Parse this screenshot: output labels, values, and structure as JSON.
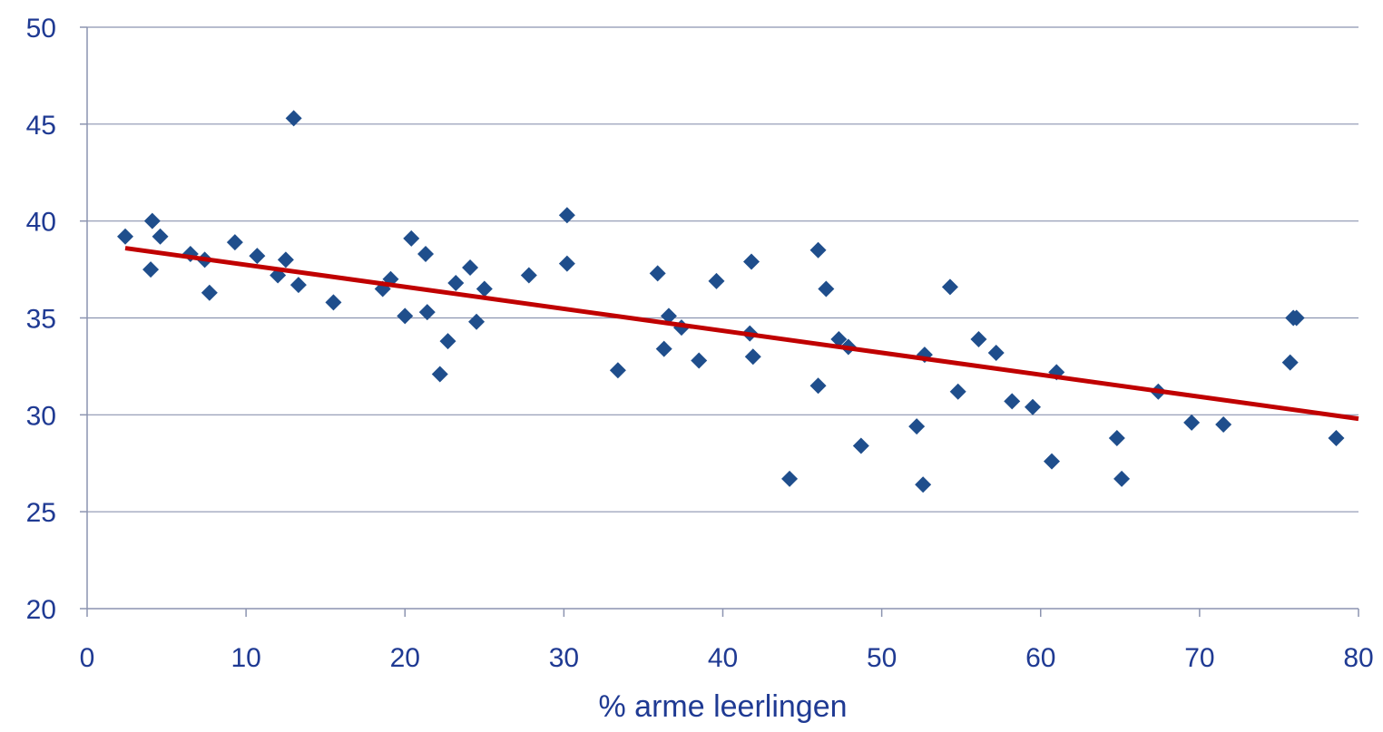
{
  "chart_data": {
    "type": "scatter",
    "title": "",
    "xlabel": "% arme leerlingen",
    "ylabel": "",
    "xlim": [
      0,
      80
    ],
    "ylim": [
      20,
      50
    ],
    "xticks": [
      0,
      10,
      20,
      30,
      40,
      50,
      60,
      70,
      80
    ],
    "yticks": [
      20,
      25,
      30,
      35,
      40,
      45,
      50
    ],
    "grid": "horizontal",
    "legend": "none",
    "colors": {
      "points": "#1f4e8c",
      "trendline": "#c00000",
      "text": "#1f3a93"
    },
    "series": [
      {
        "marker": "diamond",
        "points": [
          [
            2.4,
            39.2
          ],
          [
            4.1,
            40.0
          ],
          [
            4.0,
            37.5
          ],
          [
            4.6,
            39.2
          ],
          [
            6.5,
            38.3
          ],
          [
            7.4,
            38.0
          ],
          [
            7.7,
            36.3
          ],
          [
            9.3,
            38.9
          ],
          [
            10.7,
            38.2
          ],
          [
            12.0,
            37.2
          ],
          [
            12.5,
            38.0
          ],
          [
            13.0,
            45.3
          ],
          [
            13.3,
            36.7
          ],
          [
            15.5,
            35.8
          ],
          [
            18.6,
            36.5
          ],
          [
            19.1,
            37.0
          ],
          [
            20.0,
            35.1
          ],
          [
            20.4,
            39.1
          ],
          [
            21.3,
            38.3
          ],
          [
            21.4,
            35.3
          ],
          [
            22.2,
            32.1
          ],
          [
            22.7,
            33.8
          ],
          [
            23.2,
            36.8
          ],
          [
            24.1,
            37.6
          ],
          [
            24.5,
            34.8
          ],
          [
            25.0,
            36.5
          ],
          [
            27.8,
            37.2
          ],
          [
            30.2,
            40.3
          ],
          [
            30.2,
            37.8
          ],
          [
            33.4,
            32.3
          ],
          [
            35.9,
            37.3
          ],
          [
            36.3,
            33.4
          ],
          [
            36.6,
            35.1
          ],
          [
            37.4,
            34.5
          ],
          [
            38.5,
            32.8
          ],
          [
            39.6,
            36.9
          ],
          [
            41.7,
            34.2
          ],
          [
            41.8,
            37.9
          ],
          [
            41.9,
            33.0
          ],
          [
            44.2,
            26.7
          ],
          [
            46.0,
            38.5
          ],
          [
            46.0,
            31.5
          ],
          [
            46.5,
            36.5
          ],
          [
            47.3,
            33.9
          ],
          [
            47.9,
            33.5
          ],
          [
            48.7,
            28.4
          ],
          [
            52.2,
            29.4
          ],
          [
            52.6,
            26.4
          ],
          [
            52.7,
            33.1
          ],
          [
            54.3,
            36.6
          ],
          [
            54.8,
            31.2
          ],
          [
            56.1,
            33.9
          ],
          [
            57.2,
            33.2
          ],
          [
            58.2,
            30.7
          ],
          [
            59.5,
            30.4
          ],
          [
            60.7,
            27.6
          ],
          [
            61.0,
            32.2
          ],
          [
            64.8,
            28.8
          ],
          [
            65.1,
            26.7
          ],
          [
            67.4,
            31.2
          ],
          [
            69.5,
            29.6
          ],
          [
            71.5,
            29.5
          ],
          [
            75.7,
            32.7
          ],
          [
            75.9,
            35.0
          ],
          [
            76.1,
            35.0
          ],
          [
            78.6,
            28.8
          ]
        ]
      }
    ],
    "trendline": {
      "x": [
        2.4,
        80
      ],
      "y": [
        38.6,
        29.8
      ]
    }
  }
}
